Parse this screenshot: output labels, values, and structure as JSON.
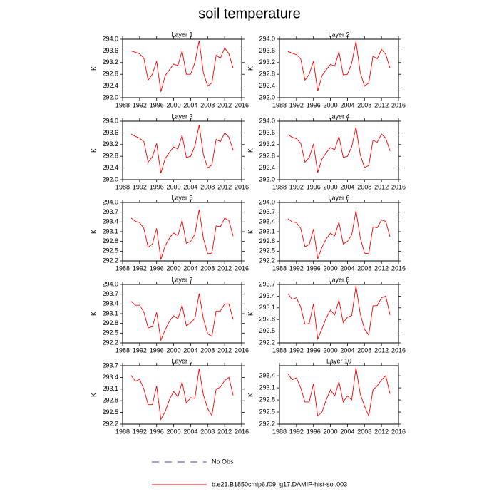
{
  "title": "soil temperature",
  "legend": [
    {
      "name": "No Obs",
      "color": "#4a4aa8",
      "dashed": true
    },
    {
      "name": "b.e21.B1850cmip6.f09_g17.DAMIP-hist-sol.003",
      "color": "#ff0000",
      "dashed": false
    }
  ],
  "chart_data": [
    {
      "type": "line",
      "title": "Layer 1",
      "ylabel": "K",
      "x": [
        1990,
        1991,
        1992,
        1993,
        1994,
        1995,
        1996,
        1997,
        1998,
        1999,
        2000,
        2001,
        2002,
        2003,
        2004,
        2005,
        2006,
        2007,
        2008,
        2009,
        2010,
        2011,
        2012,
        2013,
        2014
      ],
      "series": [
        {
          "color": "#ff0000",
          "values": [
            293.6,
            293.55,
            293.5,
            293.35,
            292.6,
            292.8,
            293.25,
            292.2,
            292.75,
            292.95,
            293.15,
            293.1,
            293.6,
            292.8,
            292.8,
            293.2,
            293.95,
            292.85,
            292.4,
            292.5,
            293.45,
            293.35,
            293.7,
            293.5,
            293.0
          ]
        }
      ],
      "xlim": [
        1988,
        2016
      ],
      "xticks": [
        1988,
        1992,
        1996,
        2000,
        2004,
        2008,
        2012,
        2016
      ],
      "ylim": [
        292.0,
        294.0
      ],
      "yticks": [
        {
          "value": 292.0,
          "label": "292.0"
        },
        292.4,
        292.8,
        293.2,
        293.6,
        {
          "value": 294.0,
          "label": "294.0"
        }
      ]
    },
    {
      "type": "line",
      "title": "Layer 2",
      "ylabel": "K",
      "x": [
        1990,
        1991,
        1992,
        1993,
        1994,
        1995,
        1996,
        1997,
        1998,
        1999,
        2000,
        2001,
        2002,
        2003,
        2004,
        2005,
        2006,
        2007,
        2008,
        2009,
        2010,
        2011,
        2012,
        2013,
        2014
      ],
      "series": [
        {
          "color": "#ff0000",
          "values": [
            293.58,
            293.52,
            293.47,
            293.33,
            292.6,
            292.8,
            293.25,
            292.22,
            292.75,
            292.95,
            293.14,
            293.08,
            293.57,
            292.78,
            292.8,
            293.18,
            293.92,
            292.86,
            292.4,
            292.5,
            293.42,
            293.33,
            293.65,
            293.48,
            293.0
          ]
        }
      ],
      "xlim": [
        1988,
        2016
      ],
      "xticks": [
        1988,
        1992,
        1996,
        2000,
        2004,
        2008,
        2012,
        2016
      ],
      "ylim": [
        292.0,
        294.0
      ],
      "yticks": [
        {
          "value": 292.0,
          "label": "292.0"
        },
        292.4,
        292.8,
        293.2,
        293.6,
        {
          "value": 294.0,
          "label": "294.0"
        }
      ]
    },
    {
      "type": "line",
      "title": "Layer 3",
      "ylabel": "K",
      "x": [
        1990,
        1991,
        1992,
        1993,
        1994,
        1995,
        1996,
        1997,
        1998,
        1999,
        2000,
        2001,
        2002,
        2003,
        2004,
        2005,
        2006,
        2007,
        2008,
        2009,
        2010,
        2011,
        2012,
        2013,
        2014
      ],
      "series": [
        {
          "color": "#ff0000",
          "values": [
            293.56,
            293.48,
            293.42,
            293.3,
            292.6,
            292.78,
            293.24,
            292.22,
            292.72,
            292.93,
            293.12,
            293.05,
            293.52,
            292.76,
            292.8,
            293.15,
            293.87,
            292.86,
            292.4,
            292.5,
            293.38,
            293.3,
            293.6,
            293.45,
            293.0
          ]
        }
      ],
      "xlim": [
        1988,
        2016
      ],
      "xticks": [
        1988,
        1992,
        1996,
        2000,
        2004,
        2008,
        2012,
        2016
      ],
      "ylim": [
        292.0,
        294.0
      ],
      "yticks": [
        {
          "value": 292.0,
          "label": "292.0"
        },
        292.4,
        292.8,
        293.2,
        293.6,
        {
          "value": 294.0,
          "label": "294.0"
        }
      ]
    },
    {
      "type": "line",
      "title": "Layer 4",
      "ylabel": "K",
      "x": [
        1990,
        1991,
        1992,
        1993,
        1994,
        1995,
        1996,
        1997,
        1998,
        1999,
        2000,
        2001,
        2002,
        2003,
        2004,
        2005,
        2006,
        2007,
        2008,
        2009,
        2010,
        2011,
        2012,
        2013,
        2014
      ],
      "series": [
        {
          "color": "#ff0000",
          "values": [
            293.54,
            293.45,
            293.4,
            293.25,
            292.6,
            292.75,
            293.22,
            292.24,
            292.7,
            292.92,
            293.1,
            293.02,
            293.48,
            292.76,
            292.8,
            293.12,
            293.8,
            292.86,
            292.42,
            292.48,
            293.35,
            293.28,
            293.56,
            293.42,
            292.98
          ]
        }
      ],
      "xlim": [
        1988,
        2016
      ],
      "xticks": [
        1988,
        1992,
        1996,
        2000,
        2004,
        2008,
        2012,
        2016
      ],
      "ylim": [
        292.0,
        294.0
      ],
      "yticks": [
        {
          "value": 292.0,
          "label": "292.0"
        },
        292.4,
        292.8,
        293.2,
        293.6,
        {
          "value": 294.0,
          "label": "294.0"
        }
      ]
    },
    {
      "type": "line",
      "title": "Layer 5",
      "ylabel": "K",
      "x": [
        1990,
        1991,
        1992,
        1993,
        1994,
        1995,
        1996,
        1997,
        1998,
        1999,
        2000,
        2001,
        2002,
        2003,
        2004,
        2005,
        2006,
        2007,
        2008,
        2009,
        2010,
        2011,
        2012,
        2013,
        2014
      ],
      "series": [
        {
          "color": "#ff0000",
          "values": [
            293.52,
            293.42,
            293.38,
            293.2,
            292.62,
            292.72,
            293.2,
            292.24,
            292.66,
            292.9,
            293.06,
            292.98,
            293.45,
            292.74,
            292.8,
            293.02,
            293.78,
            292.9,
            292.42,
            292.44,
            293.28,
            293.25,
            293.52,
            293.44,
            292.96
          ]
        }
      ],
      "xlim": [
        1988,
        2016
      ],
      "xticks": [
        1988,
        1992,
        1996,
        2000,
        2004,
        2008,
        2012,
        2016
      ],
      "ylim": [
        292.2,
        294.0
      ],
      "yticks": [
        292.2,
        292.5,
        292.8,
        293.1,
        293.4,
        293.7,
        {
          "value": 294.0,
          "label": "294.0"
        }
      ]
    },
    {
      "type": "line",
      "title": "Layer 6",
      "ylabel": "K",
      "x": [
        1990,
        1991,
        1992,
        1993,
        1994,
        1995,
        1996,
        1997,
        1998,
        1999,
        2000,
        2001,
        2002,
        2003,
        2004,
        2005,
        2006,
        2007,
        2008,
        2009,
        2010,
        2011,
        2012,
        2013,
        2014
      ],
      "series": [
        {
          "color": "#ff0000",
          "values": [
            293.5,
            293.4,
            293.38,
            293.2,
            292.64,
            292.7,
            293.18,
            292.26,
            292.62,
            292.88,
            293.05,
            292.97,
            293.4,
            292.72,
            292.8,
            293.0,
            293.75,
            292.92,
            292.44,
            292.42,
            293.25,
            293.22,
            293.46,
            293.42,
            292.94
          ]
        }
      ],
      "xlim": [
        1988,
        2016
      ],
      "xticks": [
        1988,
        1992,
        1996,
        2000,
        2004,
        2008,
        2012,
        2016
      ],
      "ylim": [
        292.2,
        294.0
      ],
      "yticks": [
        292.2,
        292.5,
        292.8,
        293.1,
        293.4,
        293.7,
        {
          "value": 294.0,
          "label": "294.0"
        }
      ]
    },
    {
      "type": "line",
      "title": "Layer 7",
      "ylabel": "K",
      "x": [
        1990,
        1991,
        1992,
        1993,
        1994,
        1995,
        1996,
        1997,
        1998,
        1999,
        2000,
        2001,
        2002,
        2003,
        2004,
        2005,
        2006,
        2007,
        2008,
        2009,
        2010,
        2011,
        2012,
        2013,
        2014
      ],
      "series": [
        {
          "color": "#ff0000",
          "values": [
            293.48,
            293.36,
            293.36,
            293.15,
            292.66,
            292.7,
            293.14,
            292.28,
            292.6,
            292.86,
            293.04,
            292.94,
            293.36,
            292.72,
            292.82,
            292.95,
            293.72,
            292.95,
            292.48,
            292.4,
            293.18,
            293.18,
            293.4,
            293.4,
            292.92
          ]
        }
      ],
      "xlim": [
        1988,
        2016
      ],
      "xticks": [
        1988,
        1992,
        1996,
        2000,
        2004,
        2008,
        2012,
        2016
      ],
      "ylim": [
        292.2,
        294.0
      ],
      "yticks": [
        292.2,
        292.5,
        292.8,
        293.1,
        293.4,
        293.7,
        {
          "value": 294.0,
          "label": "294.0"
        }
      ]
    },
    {
      "type": "line",
      "title": "Layer 8",
      "ylabel": "K",
      "x": [
        1990,
        1991,
        1992,
        1993,
        1994,
        1995,
        1996,
        1997,
        1998,
        1999,
        2000,
        2001,
        2002,
        2003,
        2004,
        2005,
        2006,
        2007,
        2008,
        2009,
        2010,
        2011,
        2012,
        2013,
        2014
      ],
      "series": [
        {
          "color": "#ff0000",
          "values": [
            293.46,
            293.32,
            293.36,
            293.12,
            292.68,
            292.7,
            293.2,
            292.3,
            292.56,
            292.84,
            293.04,
            292.92,
            293.3,
            292.72,
            292.86,
            292.9,
            293.66,
            292.95,
            292.55,
            292.4,
            293.15,
            293.16,
            293.36,
            293.4,
            292.92
          ]
        }
      ],
      "xlim": [
        1988,
        2016
      ],
      "xticks": [
        1988,
        1992,
        1996,
        2000,
        2004,
        2008,
        2012,
        2016
      ],
      "ylim": [
        292.2,
        293.7
      ],
      "yticks": [
        292.2,
        292.5,
        292.8,
        293.1,
        293.4,
        293.7
      ]
    },
    {
      "type": "line",
      "title": "Layer 9",
      "ylabel": "K",
      "x": [
        1990,
        1991,
        1992,
        1993,
        1994,
        1995,
        1996,
        1997,
        1998,
        1999,
        2000,
        2001,
        2002,
        2003,
        2004,
        2005,
        2006,
        2007,
        2008,
        2009,
        2010,
        2011,
        2012,
        2013,
        2014
      ],
      "series": [
        {
          "color": "#ff0000",
          "values": [
            293.45,
            293.3,
            293.35,
            293.1,
            292.7,
            292.7,
            293.18,
            292.32,
            292.52,
            292.82,
            293.04,
            292.9,
            293.28,
            292.74,
            292.88,
            292.86,
            293.62,
            292.95,
            292.6,
            292.42,
            293.1,
            293.15,
            293.32,
            293.4,
            292.94
          ]
        }
      ],
      "xlim": [
        1988,
        2016
      ],
      "xticks": [
        1988,
        1992,
        1996,
        2000,
        2004,
        2008,
        2012,
        2016
      ],
      "ylim": [
        292.2,
        293.7
      ],
      "yticks": [
        292.2,
        292.5,
        292.8,
        293.1,
        293.4,
        293.7
      ]
    },
    {
      "type": "line",
      "title": "Layer 10",
      "ylabel": "K",
      "x": [
        1990,
        1991,
        1992,
        1993,
        1994,
        1995,
        1996,
        1997,
        1998,
        1999,
        2000,
        2001,
        2002,
        2003,
        2004,
        2005,
        2006,
        2007,
        2008,
        2009,
        2010,
        2011,
        2012,
        2013,
        2014
      ],
      "series": [
        {
          "color": "#ff0000",
          "values": [
            293.45,
            293.3,
            293.35,
            293.1,
            292.75,
            292.75,
            293.2,
            292.4,
            292.5,
            292.8,
            293.05,
            292.9,
            293.25,
            292.75,
            292.9,
            292.8,
            293.6,
            292.95,
            292.65,
            292.4,
            293.05,
            293.15,
            293.3,
            293.4,
            292.95
          ]
        }
      ],
      "xlim": [
        1988,
        2016
      ],
      "xticks": [
        1988,
        1992,
        1996,
        2000,
        2004,
        2008,
        2012,
        2016
      ],
      "ylim": [
        292.2,
        293.65
      ],
      "yticks": [
        292.2,
        292.5,
        292.8,
        293.1,
        293.4
      ]
    }
  ]
}
